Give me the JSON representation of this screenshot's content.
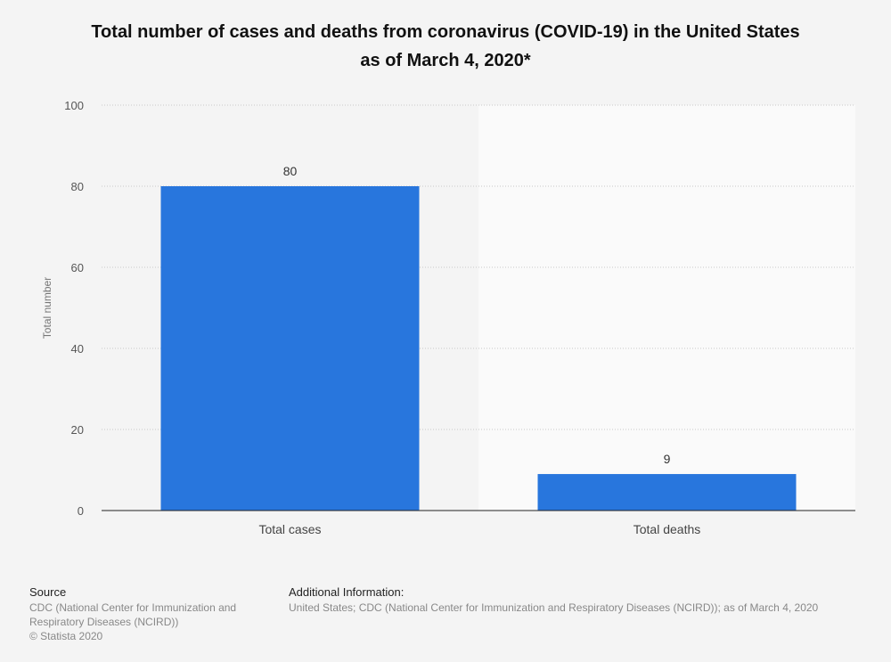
{
  "title": {
    "line1": "Total number of cases and deaths from coronavirus (COVID-19) in the United States",
    "line2": "as of March 4, 2020*"
  },
  "chart_data": {
    "type": "bar",
    "title": "Total number of cases and deaths from coronavirus (COVID-19) in the United States as of March 4, 2020*",
    "xlabel": "",
    "ylabel": "Total number",
    "categories": [
      "Total cases",
      "Total deaths"
    ],
    "values": [
      80,
      9
    ],
    "data_labels": [
      "80",
      "9"
    ],
    "ylim": [
      0,
      100
    ],
    "yticks": [
      0,
      20,
      40,
      60,
      80,
      100
    ],
    "grid": true,
    "legend": "none",
    "bar_color": "#2876dd",
    "highlight_band_color": "#fafafa"
  },
  "source": {
    "heading": "Source",
    "lines": [
      "CDC (National Center for Immunization and",
      "Respiratory Diseases (NCIRD))",
      "© Statista 2020"
    ]
  },
  "additional_info": {
    "heading": "Additional Information:",
    "text": "United States; CDC (National Center for Immunization and Respiratory Diseases (NCIRD)); as of March 4, 2020"
  }
}
